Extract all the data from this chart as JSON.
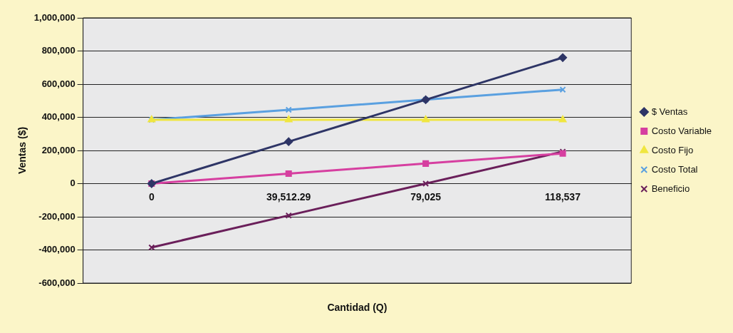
{
  "chart_data": {
    "type": "line",
    "xlabel": "Cantidad (Q)",
    "ylabel": "Ventas ($)",
    "categories": [
      "0",
      "39,512.29",
      "79,025",
      "118,537"
    ],
    "series": [
      {
        "name": "$ Ventas",
        "color": "#2e3566",
        "marker": "diamond",
        "values": [
          0,
          253000,
          506000,
          760000
        ]
      },
      {
        "name": "Costo Variable",
        "color": "#d63fa0",
        "marker": "square",
        "values": [
          0,
          60000,
          121000,
          182000
        ]
      },
      {
        "name": "Costo Fijo",
        "color": "#f0e640",
        "marker": "triangle",
        "values": [
          385000,
          385000,
          385000,
          385000
        ]
      },
      {
        "name": "Costo Total",
        "color": "#5aa0e0",
        "marker": "cross",
        "values": [
          385000,
          445000,
          506000,
          567000
        ]
      },
      {
        "name": "Beneficio",
        "color": "#6a1f5a",
        "marker": "cross",
        "values": [
          -385000,
          -192000,
          0,
          193000
        ]
      }
    ],
    "ylim": [
      -600000,
      1000000
    ],
    "yticks": [
      {
        "value": -600000,
        "label": "-600,000"
      },
      {
        "value": -400000,
        "label": "-400,000"
      },
      {
        "value": -200000,
        "label": "-200,000"
      },
      0,
      {
        "value": 200000,
        "label": "200,000"
      },
      {
        "value": 400000,
        "label": "400,000"
      },
      {
        "value": 600000,
        "label": "600,000"
      },
      {
        "value": 800000,
        "label": "800,000"
      },
      {
        "value": 1000000,
        "label": "1,000,000"
      }
    ],
    "grid": "y",
    "legend": "right",
    "line_style": "solid"
  }
}
